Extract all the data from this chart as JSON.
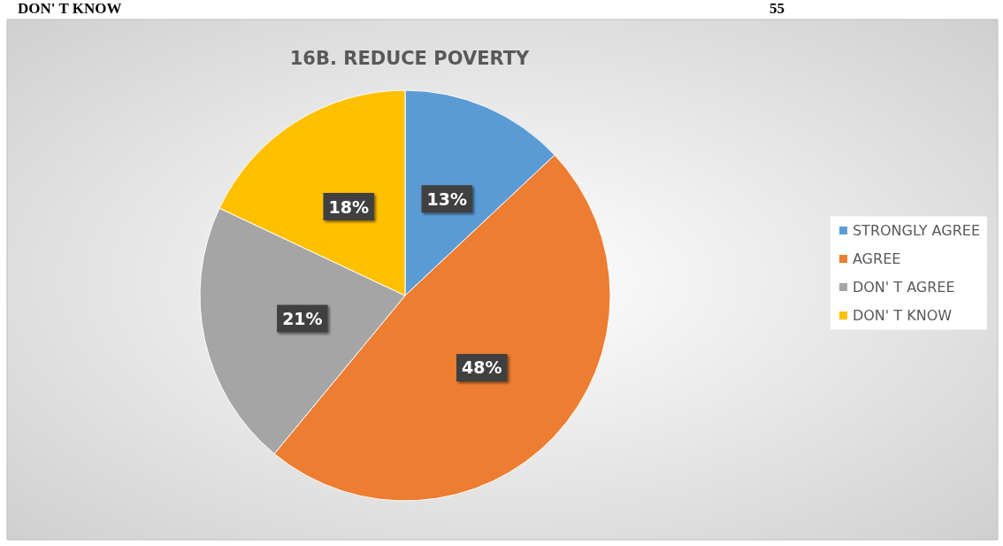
{
  "chart_data": {
    "type": "pie",
    "title": "16B. REDUCE POVERTY",
    "categories": [
      "STRONGLY AGREE",
      "AGREE",
      "DON' T AGREE",
      "DON' T KNOW"
    ],
    "values": [
      13,
      48,
      21,
      18
    ],
    "colors": [
      "#5b9bd5",
      "#ed7d31",
      "#a5a5a5",
      "#ffc000"
    ],
    "value_labels": [
      "13%",
      "48%",
      "21%",
      "18%"
    ],
    "legend": "right",
    "annotations": [
      "DON' T KNOW",
      "55"
    ]
  }
}
